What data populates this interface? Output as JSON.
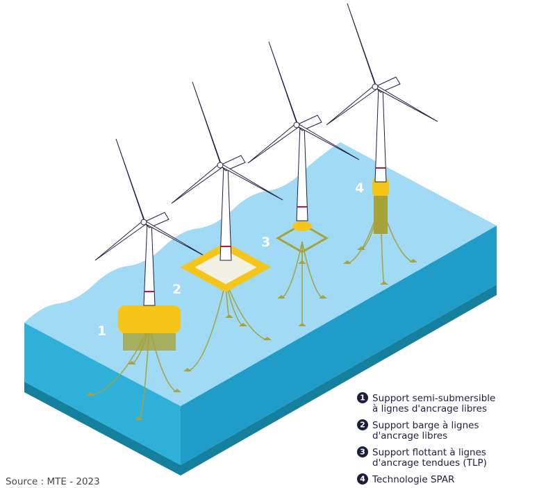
{
  "labels": [
    "1",
    "2",
    "3",
    "4"
  ],
  "legend": [
    {
      "number": "1",
      "lines": [
        "Support semi-submersible",
        "à lignes d'ancrage libres"
      ]
    },
    {
      "number": "2",
      "lines": [
        "Support barge à lignes",
        "d'ancrage libres"
      ]
    },
    {
      "number": "3",
      "lines": [
        "Support flottant à lignes",
        "d'ancrage tendues (TLP)"
      ]
    },
    {
      "number": "4",
      "lines": [
        "Technologie SPAR"
      ]
    }
  ],
  "source": "Source : MTE - 2023"
}
